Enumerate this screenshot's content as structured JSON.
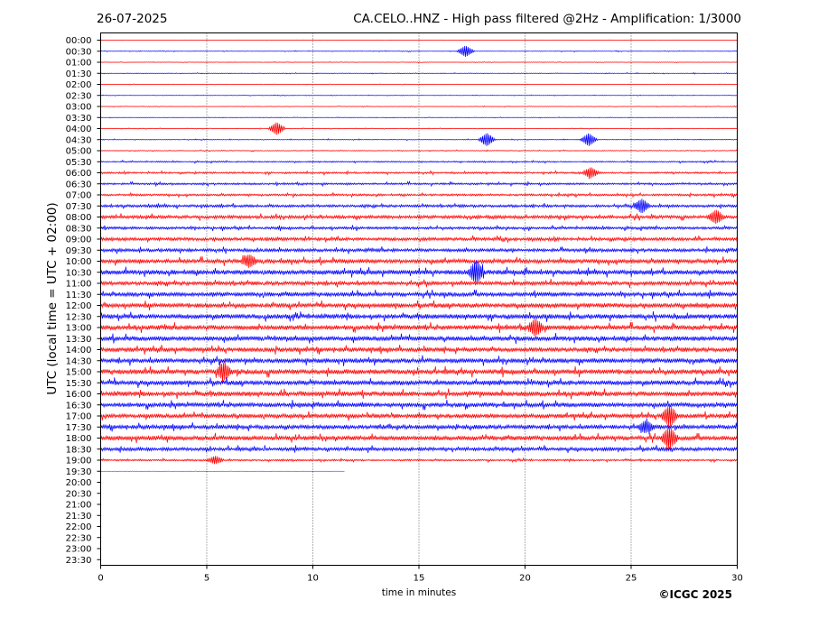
{
  "header": {
    "date": "26-07-2025",
    "title": "CA.CELO..HNZ - High pass filtered @2Hz - Amplification: 1/3000"
  },
  "copyright": "©ICGC 2025",
  "colors": {
    "odd_rows": "#ff0000",
    "even_rows": "#0000ff",
    "axes": "#000000",
    "grid": "#000000"
  },
  "chart_data": {
    "type": "line",
    "title": "CA.CELO..HNZ - High pass filtered @2Hz - Amplification: 1/3000",
    "xlabel": "time in minutes",
    "ylabel": "UTC (local time = UTC + 02:00)",
    "xlim": [
      0,
      30
    ],
    "x_ticks": [
      "0",
      "5",
      "10",
      "15",
      "20",
      "25",
      "30"
    ],
    "grid": "vertical dotted lines at 5, 10, 15, 20, 25",
    "row_colors_alternate": [
      "red",
      "blue"
    ],
    "row_labels": [
      "00:00",
      "00:30",
      "01:00",
      "01:30",
      "02:00",
      "02:30",
      "03:00",
      "03:30",
      "04:00",
      "04:30",
      "05:00",
      "05:30",
      "06:00",
      "06:30",
      "07:00",
      "07:30",
      "08:00",
      "08:30",
      "09:00",
      "09:30",
      "10:00",
      "10:30",
      "11:00",
      "11:30",
      "12:00",
      "12:30",
      "13:00",
      "13:30",
      "14:00",
      "14:30",
      "15:00",
      "15:30",
      "16:00",
      "16:30",
      "17:00",
      "17:30",
      "18:00",
      "18:30",
      "19:00",
      "19:30",
      "20:00",
      "20:30",
      "21:00",
      "21:30",
      "22:00",
      "22:30",
      "23:00",
      "23:30"
    ],
    "rows_with_data": 40,
    "last_row_end_minute": 11.5,
    "relative_amplitude": [
      0.05,
      0.1,
      0.08,
      0.1,
      0.08,
      0.08,
      0.08,
      0.08,
      0.1,
      0.12,
      0.12,
      0.22,
      0.3,
      0.32,
      0.35,
      0.45,
      0.55,
      0.45,
      0.55,
      0.55,
      0.7,
      0.8,
      0.65,
      0.7,
      0.75,
      0.8,
      0.8,
      0.8,
      0.75,
      0.8,
      0.85,
      0.8,
      0.8,
      0.75,
      0.7,
      0.7,
      0.75,
      0.6,
      0.3,
      0.05
    ],
    "events": [
      {
        "row": "00:30",
        "minute": 17.2,
        "amplitude": 2.2
      },
      {
        "row": "04:00",
        "minute": 8.3,
        "amplitude": 2.5
      },
      {
        "row": "04:30",
        "minute": 18.2,
        "amplitude": 2.5
      },
      {
        "row": "04:30",
        "minute": 23.0,
        "amplitude": 2.5
      },
      {
        "row": "06:00",
        "minute": 23.1,
        "amplitude": 2.0
      },
      {
        "row": "07:30",
        "minute": 25.5,
        "amplitude": 2.5
      },
      {
        "row": "08:00",
        "minute": 29.0,
        "amplitude": 2.5
      },
      {
        "row": "10:00",
        "minute": 7.0,
        "amplitude": 2.2
      },
      {
        "row": "10:30",
        "minute": 17.7,
        "amplitude": 4.0
      },
      {
        "row": "13:00",
        "minute": 20.5,
        "amplitude": 3.0
      },
      {
        "row": "15:00",
        "minute": 5.8,
        "amplitude": 3.0
      },
      {
        "row": "17:00",
        "minute": 26.8,
        "amplitude": 4.0
      },
      {
        "row": "17:30",
        "minute": 25.7,
        "amplitude": 2.0
      },
      {
        "row": "18:00",
        "minute": 26.8,
        "amplitude": 4.0
      },
      {
        "row": "19:00",
        "minute": 5.4,
        "amplitude": 1.5
      }
    ]
  }
}
